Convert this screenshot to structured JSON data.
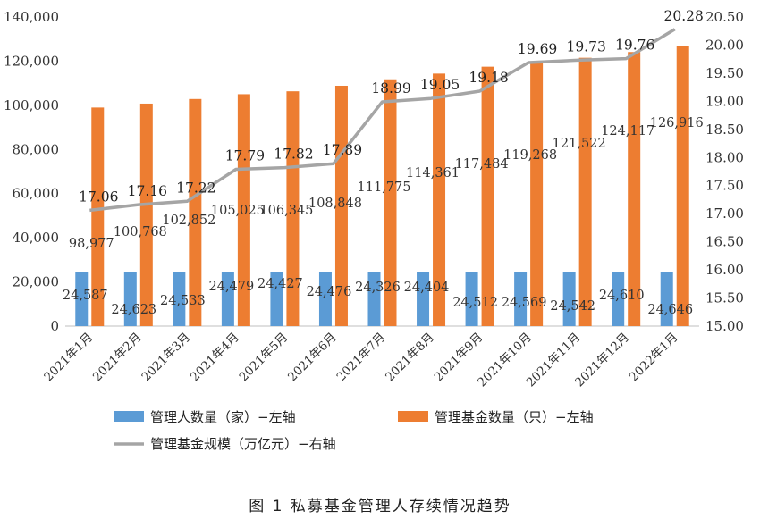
{
  "caption": "图 1 私募基金管理人存续情况趋势",
  "colors": {
    "managers": "#5B9BD5",
    "funds": "#ED7D31",
    "scale": "#A5A5A5"
  },
  "chart_data": {
    "type": "bar",
    "categories": [
      "2021年1月",
      "2021年2月",
      "2021年3月",
      "2021年4月",
      "2021年5月",
      "2021年6月",
      "2021年7月",
      "2021年8月",
      "2021年9月",
      "2021年10月",
      "2021年11月",
      "2021年12月",
      "2022年1月"
    ],
    "series": [
      {
        "name": "管理人数量（家）−左轴",
        "axis": "left",
        "type": "bar",
        "values": [
          24587,
          24623,
          24533,
          24479,
          24427,
          24476,
          24326,
          24404,
          24512,
          24569,
          24542,
          24610,
          24646
        ],
        "labels": [
          "24,587",
          "24,623",
          "24,533",
          "24,479",
          "24,427",
          "24,476",
          "24,326",
          "24,404",
          "24,512",
          "24,569",
          "24,542",
          "24,610",
          "24,646"
        ]
      },
      {
        "name": "管理基金数量（只）−左轴",
        "axis": "left",
        "type": "bar",
        "values": [
          98977,
          100768,
          102852,
          105025,
          106345,
          108848,
          111775,
          114361,
          117484,
          119268,
          121522,
          124117,
          126916
        ],
        "labels": [
          "98,977",
          "100,768",
          "102,852",
          "105,025",
          "106,345",
          "108,848",
          "111,775",
          "114,361",
          "117,484",
          "119,268",
          "121,522",
          "124,117",
          "126,916"
        ]
      },
      {
        "name": "管理基金规模（万亿元）−右轴",
        "axis": "right",
        "type": "line",
        "values": [
          17.06,
          17.16,
          17.22,
          17.79,
          17.82,
          17.89,
          18.99,
          19.05,
          19.18,
          19.69,
          19.73,
          19.76,
          20.28
        ],
        "labels": [
          "17.06",
          "17.16",
          "17.22",
          "17.79",
          "17.82",
          "17.89",
          "18.99",
          "19.05",
          "19.18",
          "19.69",
          "19.73",
          "19.76",
          "20.28"
        ]
      }
    ],
    "left_axis": {
      "ylim": [
        0,
        140000
      ],
      "ticks": [
        "0",
        "20,000",
        "40,000",
        "60,000",
        "80,000",
        "100,000",
        "120,000",
        "140,000"
      ]
    },
    "right_axis": {
      "ylim": [
        15.0,
        20.5
      ],
      "ticks": [
        "15.00",
        "15.50",
        "16.00",
        "16.50",
        "17.00",
        "17.50",
        "18.00",
        "18.50",
        "19.00",
        "19.50",
        "20.00",
        "20.50"
      ]
    },
    "legend_position": "bottom",
    "grid": false
  }
}
